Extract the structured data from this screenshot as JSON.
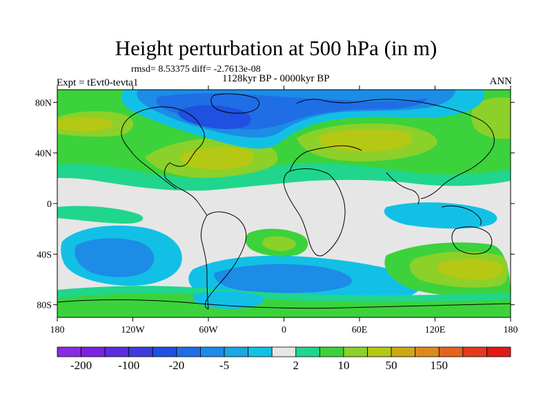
{
  "title": "Height perturbation at 500 hPa (in m)",
  "stats": {
    "text": "rmsd= 8.53375 diff= -2.7613e-08"
  },
  "period": "1128kyr BP - 0000kyr BP",
  "experiment": "Expt = tEvt0-tevta1",
  "season": "ANN",
  "map": {
    "projection": "cylindrical-equidistant",
    "lon_range": [
      -180,
      180
    ],
    "lat_range": [
      -90,
      90
    ],
    "lat_ticks": [
      {
        "value": 80,
        "label": "80N"
      },
      {
        "value": 40,
        "label": "40N"
      },
      {
        "value": 0,
        "label": "0"
      },
      {
        "value": -40,
        "label": "40S"
      },
      {
        "value": -80,
        "label": "80S"
      }
    ],
    "lon_ticks": [
      {
        "value": -180,
        "label": "180"
      },
      {
        "value": -120,
        "label": "120W"
      },
      {
        "value": -60,
        "label": "60W"
      },
      {
        "value": 0,
        "label": "0"
      },
      {
        "value": 60,
        "label": "60E"
      },
      {
        "value": 120,
        "label": "120E"
      },
      {
        "value": 180,
        "label": "180"
      }
    ]
  },
  "colorbar": {
    "colors": [
      "#8a2be2",
      "#7b22e0",
      "#5a2ee0",
      "#3c3cdc",
      "#1f50e0",
      "#1f6ee6",
      "#1c8ce6",
      "#1aa7e2",
      "#12c0e6",
      "#e6e6e6",
      "#20d68c",
      "#3cd23c",
      "#8cd02a",
      "#b4c814",
      "#cca814",
      "#dc8a1c",
      "#e4641c",
      "#e43a1c",
      "#e01a14"
    ],
    "labels": [
      "-200",
      "-100",
      "-20",
      "-5",
      "2",
      "10",
      "50",
      "150"
    ]
  }
}
